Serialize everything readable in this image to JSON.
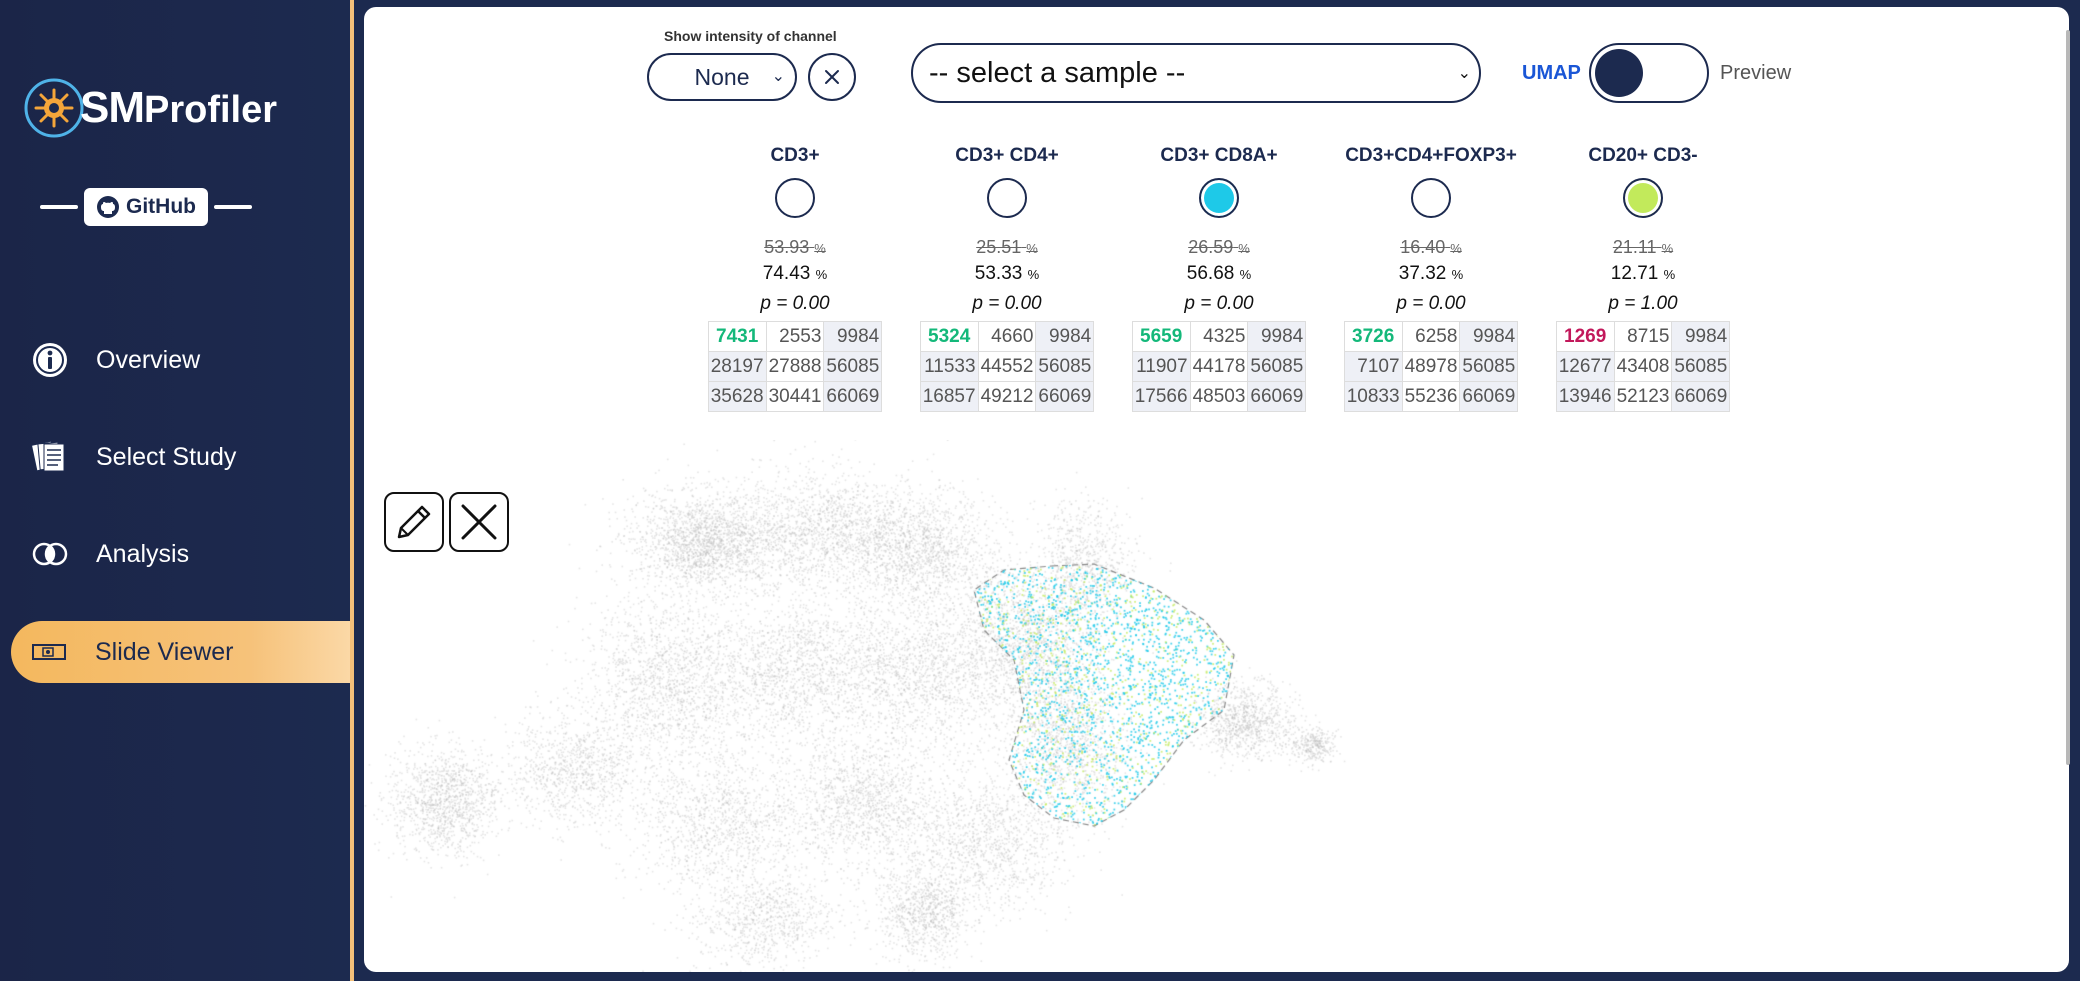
{
  "sidebar": {
    "brand": {
      "sm": "SM",
      "rest": "Profiler"
    },
    "github_label": "GitHub",
    "items": [
      {
        "label": "Overview",
        "icon": "info-icon",
        "active": false
      },
      {
        "label": "Select Study",
        "icon": "documents-icon",
        "active": false
      },
      {
        "label": "Analysis",
        "icon": "venn-icon",
        "active": false
      },
      {
        "label": "Slide Viewer",
        "icon": "slide-icon",
        "active": true
      }
    ]
  },
  "toolbar": {
    "intensity_label": "Show intensity of channel",
    "intensity_value": "None",
    "sample_placeholder": "-- select a sample --",
    "umap_label": "UMAP",
    "preview_label": "Preview"
  },
  "phenotypes": [
    {
      "name": "CD3+",
      "circle_color": "",
      "pct_old": "53.93",
      "pct_new": "74.43",
      "p": "p = 0.00",
      "rows": [
        [
          "7431",
          "2553",
          "9984"
        ],
        [
          "28197",
          "27888",
          "56085"
        ],
        [
          "35628",
          "30441",
          "66069"
        ]
      ],
      "hl_color": "#14b87a"
    },
    {
      "name": "CD3+ CD4+",
      "circle_color": "",
      "pct_old": "25.51",
      "pct_new": "53.33",
      "p": "p = 0.00",
      "rows": [
        [
          "5324",
          "4660",
          "9984"
        ],
        [
          "11533",
          "44552",
          "56085"
        ],
        [
          "16857",
          "49212",
          "66069"
        ]
      ],
      "hl_color": "#14b87a"
    },
    {
      "name": "CD3+ CD8A+",
      "circle_color": "#1ec9e8",
      "pct_old": "26.59",
      "pct_new": "56.68",
      "p": "p = 0.00",
      "rows": [
        [
          "5659",
          "4325",
          "9984"
        ],
        [
          "11907",
          "44178",
          "56085"
        ],
        [
          "17566",
          "48503",
          "66069"
        ]
      ],
      "hl_color": "#14b87a"
    },
    {
      "name": "CD3+CD4+FOXP3+",
      "circle_color": "",
      "pct_old": "16.40",
      "pct_new": "37.32",
      "p": "p = 0.00",
      "rows": [
        [
          "3726",
          "6258",
          "9984"
        ],
        [
          "7107",
          "48978",
          "56085"
        ],
        [
          "10833",
          "55236",
          "66069"
        ]
      ],
      "hl_color": "#14b87a"
    },
    {
      "name": "CD20+ CD3-",
      "circle_color": "#c2ea5b",
      "pct_old": "21.11",
      "pct_new": "12.71",
      "p": "p = 1.00",
      "rows": [
        [
          "1269",
          "8715",
          "9984"
        ],
        [
          "12677",
          "43408",
          "56085"
        ],
        [
          "13946",
          "52123",
          "66069"
        ]
      ],
      "hl_color": "#c2185b"
    }
  ],
  "pct_symbol": "%",
  "colors": {
    "sidebar_bg": "#1c2a4f",
    "accent": "#f4b85e",
    "umap_blue": "#1a56d6",
    "cd8_cyan": "#1ec9e8",
    "cd20_lime": "#c2ea5b"
  }
}
